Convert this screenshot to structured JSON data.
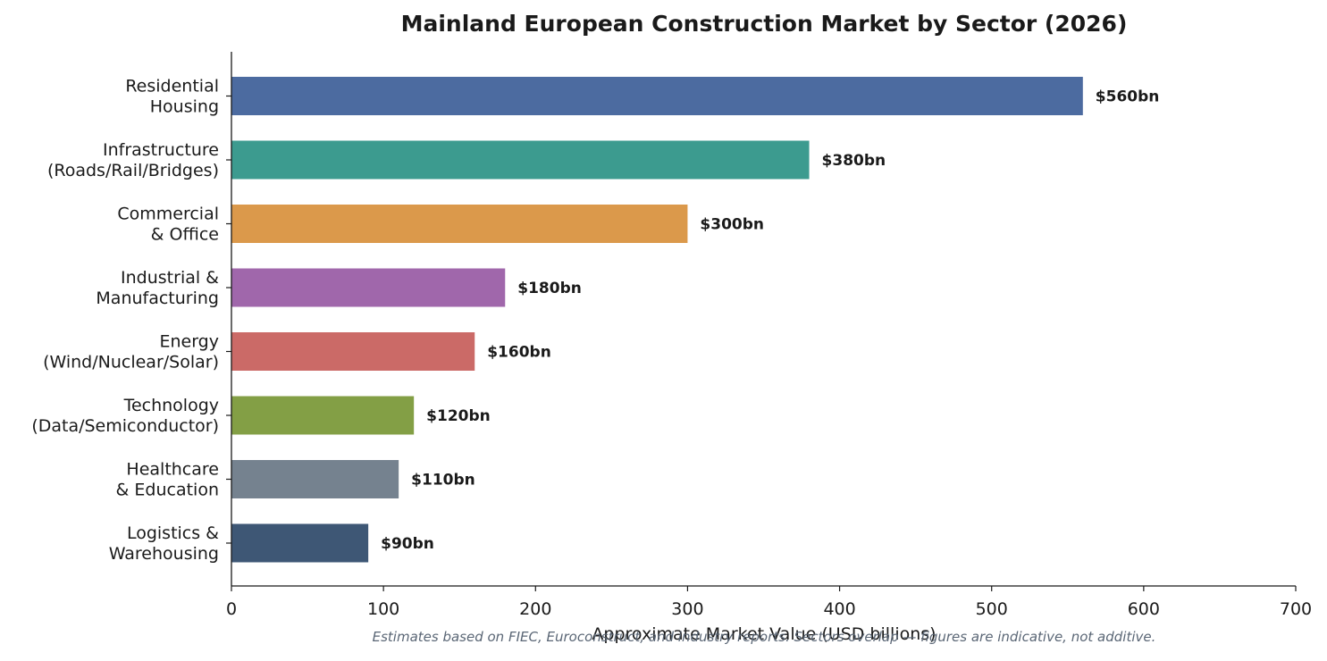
{
  "chart_data": {
    "type": "bar",
    "orientation": "horizontal",
    "title": "Mainland European Construction Market by Sector (2026)",
    "xlabel": "Approximate Market Value (USD billions)",
    "ylabel": "",
    "xlim": [
      0,
      700
    ],
    "xticks": [
      0,
      100,
      200,
      300,
      400,
      500,
      600,
      700
    ],
    "grid": false,
    "categories": [
      [
        "Residential",
        "Housing"
      ],
      [
        "Infrastructure",
        "(Roads/Rail/Bridges)"
      ],
      [
        "Commercial",
        "& Office"
      ],
      [
        "Industrial &",
        "Manufacturing"
      ],
      [
        "Energy",
        "(Wind/Nuclear/Solar)"
      ],
      [
        "Technology",
        "(Data/Semiconductor)"
      ],
      [
        "Healthcare",
        "& Education"
      ],
      [
        "Logistics &",
        "Warehousing"
      ]
    ],
    "values": [
      560,
      380,
      300,
      180,
      160,
      120,
      110,
      90
    ],
    "value_labels": [
      "$560bn",
      "$380bn",
      "$300bn",
      "$180bn",
      "$160bn",
      "$120bn",
      "$110bn",
      "$90bn"
    ],
    "colors": [
      "#4c6ba0",
      "#3c9b8f",
      "#db994b",
      "#a067ab",
      "#cb6a67",
      "#839f45",
      "#75828f",
      "#3e5775"
    ],
    "note": "Estimates based on FIEC, Euroconstruct, and industry reports. Sectors overlap — figures are indicative, not additive."
  }
}
